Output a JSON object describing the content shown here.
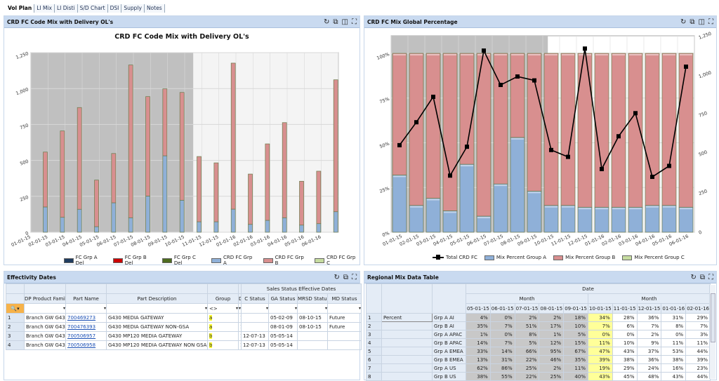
{
  "tabs": [
    {
      "label": "Vol Plan",
      "active": true
    },
    {
      "label": "LI Mix"
    },
    {
      "label": "LI Disti"
    },
    {
      "label": "S/D Chart"
    },
    {
      "label": "DSI"
    },
    {
      "label": "Supply"
    },
    {
      "label": "Notes"
    }
  ],
  "panels": {
    "p1": {
      "title": "CRD FC Code Mix with Delivery OL's"
    },
    "p2": {
      "title": "CRD FC Mix Global Percentage"
    },
    "p3": {
      "title": "Effectivity Dates"
    },
    "p4": {
      "title": "Regional Mix Data Table"
    }
  },
  "tools": {
    "refresh": "↻",
    "popout": "⧉",
    "layout": "◫",
    "expand": "⛶",
    "dropdown": "▾"
  },
  "chart_data": [
    {
      "type": "bar",
      "title": "CRD FC Code Mix with Delivery OL's",
      "stacked": true,
      "categories": [
        "01-01-15",
        "02-01-15",
        "03-01-15",
        "04-01-15",
        "05-01-15",
        "06-01-15",
        "07-01-15",
        "08-01-15",
        "09-01-15",
        "10-01-15",
        "11-01-15",
        "12-01-15",
        "01-01-16",
        "02-01-16",
        "03-01-16",
        "04-01-16",
        "05-01-16",
        "06-01-16"
      ],
      "ylim": [
        0,
        1250
      ],
      "yticks": [
        0,
        250,
        500,
        750,
        1000,
        1250
      ],
      "ytick_labels": [
        "0",
        "250",
        "500",
        "750",
        "1,000",
        "1,250"
      ],
      "series": [
        {
          "name": "FC Grp A Del",
          "color": "#1f3b5e",
          "values": [
            0,
            0,
            0,
            0,
            0,
            0,
            0,
            0,
            0,
            0,
            0,
            0,
            0,
            0,
            0,
            0,
            0,
            0
          ]
        },
        {
          "name": "FC Grp B Del",
          "color": "#cc0000",
          "values": [
            0,
            0,
            0,
            0,
            0,
            0,
            0,
            0,
            0,
            0,
            0,
            0,
            0,
            0,
            0,
            0,
            0,
            0
          ]
        },
        {
          "name": "FC Grp C Del",
          "color": "#4d6b1f",
          "values": [
            0,
            0,
            0,
            0,
            0,
            0,
            0,
            0,
            0,
            0,
            0,
            0,
            0,
            0,
            0,
            0,
            0,
            0
          ]
        },
        {
          "name": "CRD FC Grp A",
          "color": "#8fb0d8",
          "values": [
            176,
            104,
            160,
            39,
            205,
            101,
            252,
            532,
            223,
            73,
            73,
            161,
            55,
            83,
            101,
            50,
            60,
            143
          ]
        },
        {
          "name": "CRD FC Grp B",
          "color": "#d88f8f",
          "values": [
            382,
            601,
            708,
            324,
            343,
            1063,
            692,
            466,
            750,
            454,
            410,
            1016,
            350,
            532,
            662,
            305,
            365,
            918
          ]
        },
        {
          "name": "CRD FC Grp C",
          "color": "#c6dca0",
          "values": [
            0,
            0,
            0,
            0,
            0,
            0,
            0,
            0,
            0,
            0,
            0,
            0,
            0,
            0,
            0,
            0,
            0,
            0
          ]
        }
      ],
      "shaded_until": "10-01-15",
      "legend": "bottom"
    },
    {
      "type": "bar",
      "title": "CRD FC Mix Global Percentage",
      "stacked": true,
      "categories": [
        "01-01-15",
        "02-01-15",
        "03-01-15",
        "04-01-15",
        "05-01-15",
        "06-01-15",
        "07-01-15",
        "08-01-15",
        "09-01-15",
        "10-01-15",
        "11-01-15",
        "12-01-15",
        "01-01-16",
        "02-01-16",
        "03-01-16",
        "04-01-16",
        "05-01-16",
        "06-01-16"
      ],
      "ylim": [
        0,
        100
      ],
      "yticks": [
        0,
        25,
        50,
        75,
        100
      ],
      "ytick_labels": [
        "0%",
        "25%",
        "50%",
        "75%",
        "100%"
      ],
      "y2lim": [
        0,
        1250
      ],
      "y2ticks": [
        0,
        250,
        500,
        750,
        1000,
        1250
      ],
      "y2tick_labels": [
        "0",
        "250",
        "500",
        "750",
        "1,000",
        "1,250"
      ],
      "series": [
        {
          "name": "Mix Percent  Group A",
          "color": "#8fb0d8",
          "values": [
            32,
            15,
            19,
            12,
            38,
            9,
            27,
            53,
            23,
            15,
            15,
            14,
            14,
            14,
            14,
            15,
            15,
            14
          ]
        },
        {
          "name": "Mix Percent  Group B",
          "color": "#d88f8f",
          "values": [
            68,
            85,
            81,
            88,
            62,
            91,
            73,
            47,
            77,
            85,
            85,
            86,
            86,
            86,
            86,
            85,
            85,
            86
          ]
        },
        {
          "name": "Mix Percent  Group C",
          "color": "#c6dca0",
          "values": [
            0,
            0,
            0,
            0,
            0,
            0,
            0,
            0,
            0,
            0,
            0,
            0,
            0,
            0,
            0,
            0,
            0,
            0
          ]
        },
        {
          "name": "Total CRD FC",
          "type": "line",
          "axis": "y2",
          "color": "#000000",
          "values": [
            558,
            705,
            868,
            363,
            548,
            1164,
            944,
            998,
            973,
            527,
            483,
            1177,
            405,
            615,
            763,
            355,
            425,
            1061
          ]
        }
      ],
      "legend": "bottom"
    }
  ],
  "effectivity": {
    "group_header": "Sales Status Effective Dates",
    "columns": [
      "DP Product Family",
      "Part Name",
      "Part Description",
      "Group",
      "D",
      "C Status",
      "GA Status",
      "MRSD Status",
      "MD Status"
    ],
    "filter_group": "<>",
    "rows": [
      {
        "n": "1",
        "family": "Branch GW G430",
        "part": "700469273",
        "desc": "G430 MEDIA GATEWAY",
        "group": "a",
        "d": "1",
        "c": "",
        "ga": "05-02-09",
        "mrsd": "08-10-15",
        "md": "Future"
      },
      {
        "n": "2",
        "family": "Branch GW G430",
        "part": "700476393",
        "desc": "G430 MEDIA GATEWAY NON-GSA",
        "group": "a",
        "d": "1",
        "c": "",
        "ga": "08-01-09",
        "mrsd": "08-10-15",
        "md": "Future"
      },
      {
        "n": "3",
        "family": "Branch GW G430",
        "part": "700506957",
        "desc": "G430 MP120 MEDIA GATEWAY",
        "group": "b",
        "d": "1",
        "c": "12-07-13",
        "ga": "05-05-14",
        "mrsd": "",
        "md": ""
      },
      {
        "n": "4",
        "family": "Branch GW G430",
        "part": "700506958",
        "desc": "G430 MP120 MEDIA GATEWAY NON GSA",
        "group": "b",
        "d": "1",
        "c": "12-07-13",
        "ga": "05-05-14",
        "mrsd": "",
        "md": ""
      }
    ]
  },
  "regional": {
    "date_header": "Date",
    "month_header": "Month",
    "months": [
      "05-01-15",
      "06-01-15",
      "07-01-15",
      "08-01-15",
      "09-01-15",
      "10-01-15",
      "11-01-15",
      "12-01-15",
      "01-01-16",
      "02-01-16"
    ],
    "measure": "Percent",
    "rows": [
      {
        "n": "1",
        "label": "Grp A AI",
        "vals": [
          "4%",
          "0%",
          "2%",
          "2%",
          "18%",
          "34%",
          "28%",
          "36%",
          "31%",
          "29%"
        ]
      },
      {
        "n": "2",
        "label": "Grp B AI",
        "vals": [
          "35%",
          "7%",
          "51%",
          "17%",
          "10%",
          "7%",
          "6%",
          "7%",
          "8%",
          "7%"
        ]
      },
      {
        "n": "3",
        "label": "Grp A APAC",
        "vals": [
          "1%",
          "0%",
          "8%",
          "1%",
          "5%",
          "0%",
          "0%",
          "2%",
          "0%",
          "3%"
        ]
      },
      {
        "n": "4",
        "label": "Grp B APAC",
        "vals": [
          "14%",
          "7%",
          "5%",
          "12%",
          "15%",
          "11%",
          "10%",
          "9%",
          "11%",
          "11%"
        ]
      },
      {
        "n": "5",
        "label": "Grp A EMEA",
        "vals": [
          "33%",
          "14%",
          "66%",
          "95%",
          "67%",
          "47%",
          "43%",
          "37%",
          "53%",
          "44%"
        ]
      },
      {
        "n": "6",
        "label": "Grp B EMEA",
        "vals": [
          "13%",
          "31%",
          "22%",
          "46%",
          "35%",
          "39%",
          "38%",
          "36%",
          "38%",
          "39%"
        ]
      },
      {
        "n": "7",
        "label": "Grp A US",
        "vals": [
          "62%",
          "86%",
          "25%",
          "2%",
          "11%",
          "19%",
          "29%",
          "24%",
          "16%",
          "23%"
        ]
      },
      {
        "n": "8",
        "label": "Grp B US",
        "vals": [
          "38%",
          "55%",
          "22%",
          "25%",
          "40%",
          "43%",
          "45%",
          "48%",
          "43%",
          "44%"
        ]
      }
    ]
  }
}
